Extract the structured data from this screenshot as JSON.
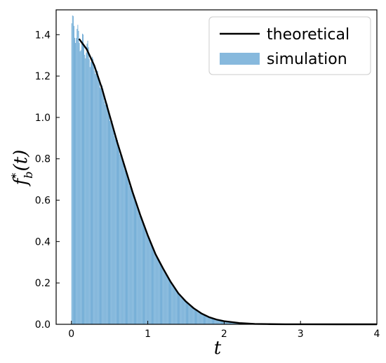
{
  "chart_data": {
    "type": "histogram+line",
    "xlabel": "t",
    "ylabel_base": "f",
    "ylabel_sup": "*",
    "ylabel_sub": "b",
    "ylabel_arg": "(t)",
    "xlim": [
      -0.2,
      4.0
    ],
    "ylim": [
      0.0,
      1.52
    ],
    "x_ticks": [
      0,
      1,
      2,
      3,
      4
    ],
    "x_tick_labels": [
      "0",
      "1",
      "2",
      "3",
      "4"
    ],
    "y_ticks": [
      0.0,
      0.2,
      0.4,
      0.6,
      0.8,
      1.0,
      1.2,
      1.4
    ],
    "y_tick_labels": [
      "0.0",
      "0.2",
      "0.4",
      "0.6",
      "0.8",
      "1.0",
      "1.2",
      "1.4"
    ],
    "grid": false,
    "legend_position": "top-right",
    "series": [
      {
        "name": "theoretical",
        "kind": "line",
        "color": "#000000",
        "x": [
          0.1,
          0.2,
          0.3,
          0.4,
          0.5,
          0.6,
          0.7,
          0.8,
          0.9,
          1.0,
          1.1,
          1.2,
          1.3,
          1.4,
          1.5,
          1.6,
          1.7,
          1.8,
          1.9,
          2.0,
          2.2,
          2.4,
          2.6,
          2.8,
          3.0,
          3.5,
          4.0
        ],
        "y": [
          1.38,
          1.33,
          1.25,
          1.14,
          1.01,
          0.88,
          0.76,
          0.64,
          0.53,
          0.43,
          0.34,
          0.27,
          0.205,
          0.15,
          0.11,
          0.078,
          0.053,
          0.035,
          0.023,
          0.015,
          0.006,
          0.002,
          0.0008,
          0.0003,
          0.0001,
          0.0,
          0.0
        ]
      },
      {
        "name": "simulation",
        "kind": "histogram",
        "color": "#5fa2d1",
        "bin_width": 0.01,
        "x": [
          0.0,
          0.02,
          0.05,
          0.1,
          0.2,
          0.3,
          0.4,
          0.5,
          0.6,
          0.7,
          0.8,
          0.9,
          1.0,
          1.1,
          1.2,
          1.3,
          1.4,
          1.5,
          1.6,
          1.7,
          1.8,
          1.9,
          2.0,
          2.2,
          2.4,
          2.6,
          2.8,
          3.0,
          3.5,
          4.0
        ],
        "y": [
          1.46,
          1.44,
          1.42,
          1.38,
          1.33,
          1.25,
          1.14,
          1.01,
          0.88,
          0.76,
          0.64,
          0.53,
          0.43,
          0.34,
          0.27,
          0.205,
          0.15,
          0.11,
          0.078,
          0.053,
          0.035,
          0.023,
          0.015,
          0.006,
          0.002,
          0.0008,
          0.0003,
          0.0001,
          0.0,
          0.0
        ]
      }
    ]
  }
}
